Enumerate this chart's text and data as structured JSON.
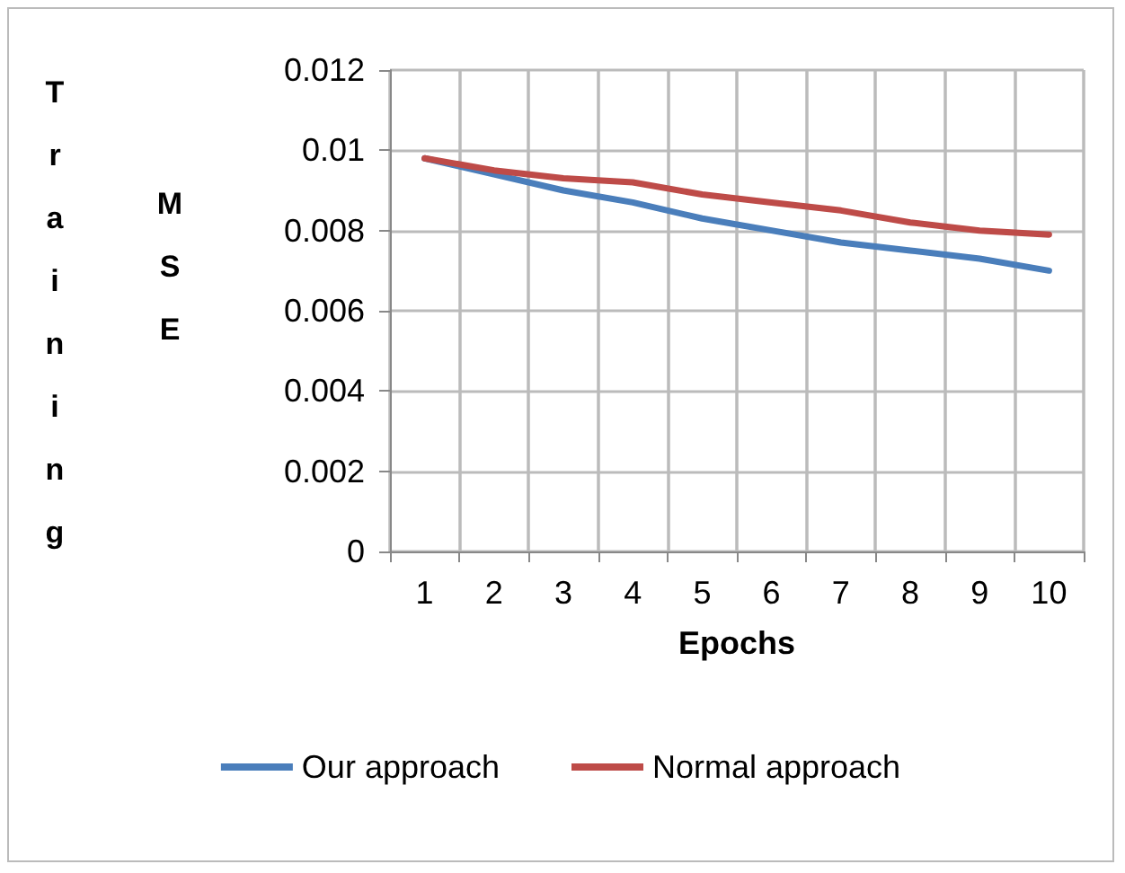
{
  "chart_data": {
    "type": "line",
    "xlabel": "Epochs",
    "ylabel": "Training MSE",
    "categories": [
      "1",
      "2",
      "3",
      "4",
      "5",
      "6",
      "7",
      "8",
      "9",
      "10"
    ],
    "series": [
      {
        "name": "Our approach",
        "color": "#4a7ebb",
        "values": [
          0.0098,
          0.0094,
          0.009,
          0.0087,
          0.0083,
          0.008,
          0.0077,
          0.0075,
          0.0073,
          0.007
        ]
      },
      {
        "name": "Normal approach",
        "color": "#be4b48",
        "values": [
          0.0098,
          0.0095,
          0.0093,
          0.0092,
          0.0089,
          0.0087,
          0.0085,
          0.0082,
          0.008,
          0.0079
        ]
      }
    ],
    "ylim": [
      0,
      0.012
    ],
    "yticks": [
      0,
      0.002,
      0.004,
      0.006,
      0.008,
      0.01,
      0.012
    ],
    "grid": true,
    "legend": "bottom",
    "marker": "none",
    "line_style": "solid"
  }
}
